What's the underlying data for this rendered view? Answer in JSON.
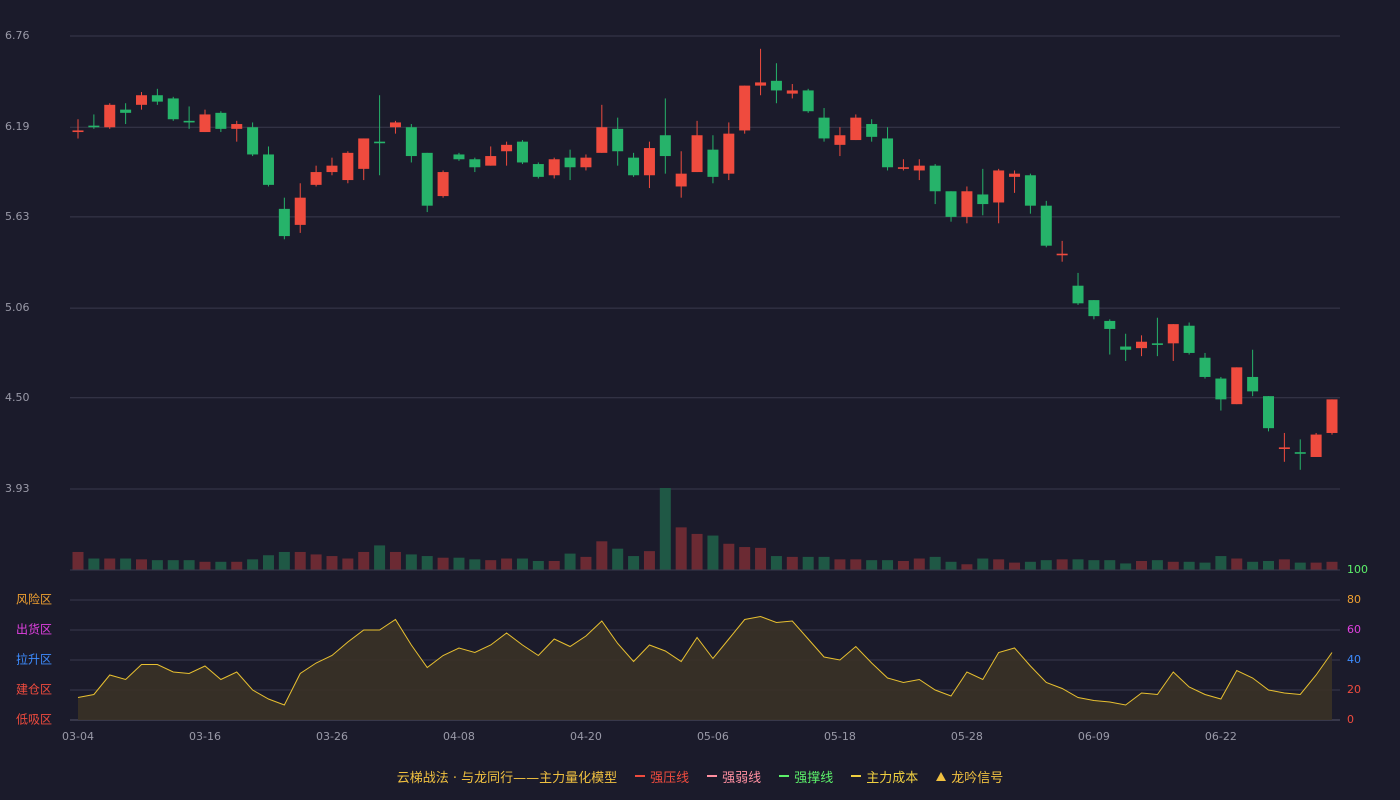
{
  "chart_data": [
    {
      "type": "candlestick",
      "categories": [
        "03-04",
        null,
        null,
        null,
        null,
        null,
        null,
        null,
        "03-16",
        null,
        null,
        null,
        null,
        null,
        null,
        null,
        "03-26",
        null,
        null,
        null,
        null,
        null,
        null,
        null,
        "04-08",
        null,
        null,
        null,
        null,
        null,
        null,
        null,
        "04-20",
        null,
        null,
        null,
        null,
        null,
        null,
        null,
        "05-06",
        null,
        null,
        null,
        null,
        null,
        null,
        null,
        "05-18",
        null,
        null,
        null,
        null,
        null,
        null,
        null,
        "05-28",
        null,
        null,
        null,
        null,
        null,
        null,
        null,
        "06-09",
        null,
        null,
        null,
        null,
        null,
        null,
        null,
        "06-22",
        null,
        null,
        null,
        null,
        null,
        null,
        null
      ],
      "open": [
        6.16,
        6.2,
        6.19,
        6.3,
        6.33,
        6.39,
        6.37,
        6.23,
        6.16,
        6.28,
        6.18,
        6.19,
        6.02,
        5.68,
        5.58,
        5.83,
        5.91,
        5.86,
        5.93,
        6.1,
        6.19,
        6.19,
        6.03,
        5.76,
        6.02,
        5.99,
        5.95,
        6.04,
        6.1,
        5.96,
        5.89,
        6.0,
        5.94,
        6.03,
        6.18,
        6.0,
        5.89,
        6.14,
        5.82,
        5.91,
        6.05,
        5.9,
        6.17,
        6.45,
        6.48,
        6.4,
        6.42,
        6.25,
        6.08,
        6.11,
        6.21,
        6.12,
        5.93,
        5.92,
        5.95,
        5.79,
        5.63,
        5.77,
        5.72,
        5.88,
        5.89,
        5.7,
        5.39,
        5.2,
        5.11,
        4.98,
        4.82,
        4.81,
        4.84,
        4.84,
        4.95,
        4.75,
        4.62,
        4.46,
        4.63,
        4.51,
        4.18,
        4.16,
        4.13,
        4.28
      ],
      "high": [
        6.24,
        6.27,
        6.34,
        6.34,
        6.41,
        6.43,
        6.38,
        6.32,
        6.3,
        6.29,
        6.23,
        6.22,
        6.07,
        5.75,
        5.84,
        5.95,
        6.0,
        6.04,
        6.12,
        6.39,
        6.23,
        6.21,
        6.03,
        5.92,
        6.03,
        6.0,
        6.07,
        6.1,
        6.11,
        5.97,
        6.0,
        6.05,
        6.02,
        6.33,
        6.25,
        6.03,
        6.1,
        6.37,
        6.04,
        6.23,
        6.14,
        6.22,
        6.45,
        6.68,
        6.59,
        6.46,
        6.43,
        6.31,
        6.19,
        6.27,
        6.24,
        6.19,
        5.99,
        5.99,
        5.96,
        5.79,
        5.82,
        5.93,
        5.93,
        5.92,
        5.9,
        5.73,
        5.48,
        5.28,
        5.11,
        4.99,
        4.9,
        4.89,
        5.0,
        4.96,
        4.97,
        4.78,
        4.63,
        4.69,
        4.8,
        4.51,
        4.28,
        4.24,
        4.28,
        4.49
      ],
      "low": [
        6.12,
        6.18,
        6.18,
        6.21,
        6.3,
        6.33,
        6.23,
        6.18,
        6.16,
        6.16,
        6.1,
        6.01,
        5.82,
        5.49,
        5.53,
        5.82,
        5.89,
        5.84,
        5.86,
        5.89,
        6.15,
        5.97,
        5.66,
        5.75,
        5.98,
        5.91,
        5.95,
        5.95,
        5.96,
        5.87,
        5.87,
        5.86,
        5.92,
        6.03,
        5.95,
        5.88,
        5.81,
        5.9,
        5.75,
        5.91,
        5.84,
        5.86,
        6.15,
        6.39,
        6.34,
        6.37,
        6.28,
        6.1,
        6.01,
        6.11,
        6.1,
        5.92,
        5.92,
        5.86,
        5.71,
        5.6,
        5.59,
        5.64,
        5.59,
        5.78,
        5.65,
        5.44,
        5.35,
        5.08,
        4.99,
        4.77,
        4.73,
        4.76,
        4.76,
        4.73,
        4.77,
        4.62,
        4.42,
        4.46,
        4.51,
        4.29,
        4.1,
        4.05,
        4.13,
        4.27
      ],
      "close": [
        6.17,
        6.19,
        6.33,
        6.28,
        6.39,
        6.35,
        6.24,
        6.22,
        6.27,
        6.18,
        6.21,
        6.02,
        5.83,
        5.51,
        5.75,
        5.91,
        5.95,
        6.03,
        6.12,
        6.09,
        6.22,
        6.01,
        5.7,
        5.91,
        5.99,
        5.94,
        6.01,
        6.08,
        5.97,
        5.88,
        5.99,
        5.94,
        6.0,
        6.19,
        6.04,
        5.89,
        6.06,
        6.01,
        5.9,
        6.14,
        5.88,
        6.15,
        6.45,
        6.47,
        6.42,
        6.42,
        6.29,
        6.12,
        6.14,
        6.25,
        6.13,
        5.94,
        5.94,
        5.95,
        5.79,
        5.63,
        5.79,
        5.71,
        5.92,
        5.9,
        5.7,
        5.45,
        5.4,
        5.09,
        5.01,
        4.93,
        4.8,
        4.85,
        4.83,
        4.96,
        4.78,
        4.63,
        4.49,
        4.69,
        4.54,
        4.31,
        4.19,
        4.15,
        4.27,
        4.49
      ],
      "volume": [
        22,
        14,
        14,
        14,
        13,
        12,
        12,
        12,
        10,
        10,
        10,
        13,
        18,
        22,
        22,
        19,
        17,
        14,
        22,
        30,
        22,
        19,
        17,
        15,
        15,
        13,
        12,
        14,
        14,
        11,
        11,
        20,
        16,
        35,
        26,
        17,
        23,
        100,
        52,
        44,
        42,
        32,
        28,
        27,
        17,
        16,
        16,
        16,
        13,
        13,
        12,
        12,
        11,
        14,
        16,
        10,
        7,
        14,
        13,
        9,
        10,
        12,
        13,
        13,
        12,
        12,
        8,
        11,
        12,
        10,
        10,
        9,
        17,
        14,
        10,
        11,
        13,
        9,
        9,
        10
      ],
      "up_color": "#ef4b3e",
      "down_color": "#26b36a",
      "volume_up_color": "#6b2a33",
      "volume_down_color": "#1f5845",
      "ylim": [
        3.93,
        6.76
      ],
      "yticks": [
        3.93,
        {
          "value": 4.5,
          "label": "4.50"
        },
        5.06,
        5.63,
        6.19,
        6.76
      ],
      "grid": true,
      "legend": {
        "title": "云梯战法 · 与龙同行——主力量化模型",
        "title_color": "#f0c040",
        "items": [
          {
            "name": "强压线",
            "color": "#ef4b3e",
            "style": "solid"
          },
          {
            "name": "强弱线",
            "color": "#ff8fa0",
            "style": "dashed"
          },
          {
            "name": "强撑线",
            "color": "#5cf06a",
            "style": "solid"
          },
          {
            "name": "主力成本",
            "color": "#f0d040",
            "style": "dashed"
          },
          {
            "name": "龙吟信号",
            "color": "#f0c040",
            "style": "triangle"
          }
        ]
      }
    },
    {
      "type": "line",
      "values": [
        15,
        17,
        30,
        27,
        37,
        37,
        32,
        31,
        36,
        27,
        32,
        20,
        14,
        10,
        31,
        38,
        43,
        52,
        60,
        60,
        67,
        50,
        35,
        43,
        48,
        45,
        50,
        58,
        50,
        43,
        54,
        49,
        56,
        66,
        51,
        39,
        50,
        46,
        39,
        55,
        41,
        54,
        67,
        69,
        65,
        66,
        54,
        42,
        40,
        49,
        38,
        28,
        25,
        27,
        20,
        16,
        32,
        27,
        45,
        48,
        36,
        25,
        21,
        15,
        13,
        12,
        10,
        18,
        17,
        32,
        22,
        17,
        14,
        33,
        28,
        20,
        18,
        17,
        30,
        45
      ],
      "color": "#e8c030",
      "fill": "#3a3226",
      "ylim": [
        0,
        100
      ],
      "yticks": [
        0,
        20,
        40,
        60,
        80,
        100
      ],
      "ytick_colors": [
        "#ef4b3e",
        "#ef4b3e",
        "#3d8cff",
        "#e040e0",
        "#f0a030",
        "#5cf06a"
      ],
      "grid": true,
      "zones": [
        {
          "label": "风险区",
          "value": 80,
          "color": "#f0a030"
        },
        {
          "label": "出货区",
          "value": 60,
          "color": "#e040e0"
        },
        {
          "label": "拉升区",
          "value": 40,
          "color": "#3d8cff"
        },
        {
          "label": "建仓区",
          "value": 20,
          "color": "#ef4b3e"
        },
        {
          "label": "低吸区",
          "value": 0,
          "color": "#ef4b3e"
        }
      ]
    }
  ]
}
